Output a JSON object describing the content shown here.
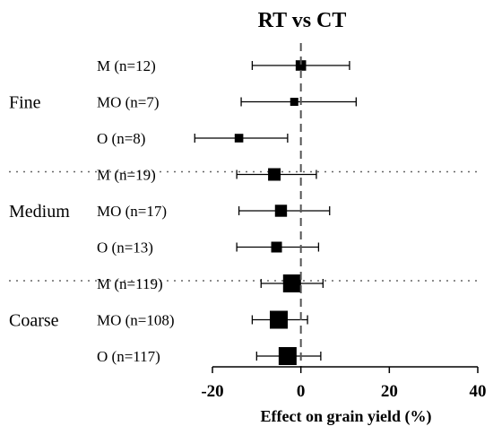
{
  "chart_data": {
    "type": "forest",
    "title": "RT vs CT",
    "xlabel": "Effect on grain yield (%)",
    "xlim": [
      -20,
      40
    ],
    "xticks": [
      -20,
      0,
      20,
      40
    ],
    "reference_line": 0,
    "groups": [
      {
        "name": "Fine",
        "rows": [
          {
            "label": "M (n=12)",
            "n": 12,
            "effect": 0,
            "ci_low": -11,
            "ci_high": 11
          },
          {
            "label": "MO (n=7)",
            "n": 7,
            "effect": -1.5,
            "ci_low": -13.5,
            "ci_high": 12.5
          },
          {
            "label": "O (n=8)",
            "n": 8,
            "effect": -14,
            "ci_low": -24,
            "ci_high": -3
          }
        ]
      },
      {
        "name": "Medium",
        "rows": [
          {
            "label": "M (n=19)",
            "n": 19,
            "effect": -6,
            "ci_low": -14.5,
            "ci_high": 3.5
          },
          {
            "label": "MO (n=17)",
            "n": 17,
            "effect": -4.5,
            "ci_low": -14,
            "ci_high": 6.5
          },
          {
            "label": "O (n=13)",
            "n": 13,
            "effect": -5.5,
            "ci_low": -14.5,
            "ci_high": 4
          }
        ]
      },
      {
        "name": "Coarse",
        "rows": [
          {
            "label": "M (n=119)",
            "n": 119,
            "effect": -2,
            "ci_low": -9,
            "ci_high": 5
          },
          {
            "label": "MO (n=108)",
            "n": 108,
            "effect": -5,
            "ci_low": -11,
            "ci_high": 1.5
          },
          {
            "label": "O (n=117)",
            "n": 117,
            "effect": -3,
            "ci_low": -10,
            "ci_high": 4.5
          }
        ]
      }
    ]
  }
}
